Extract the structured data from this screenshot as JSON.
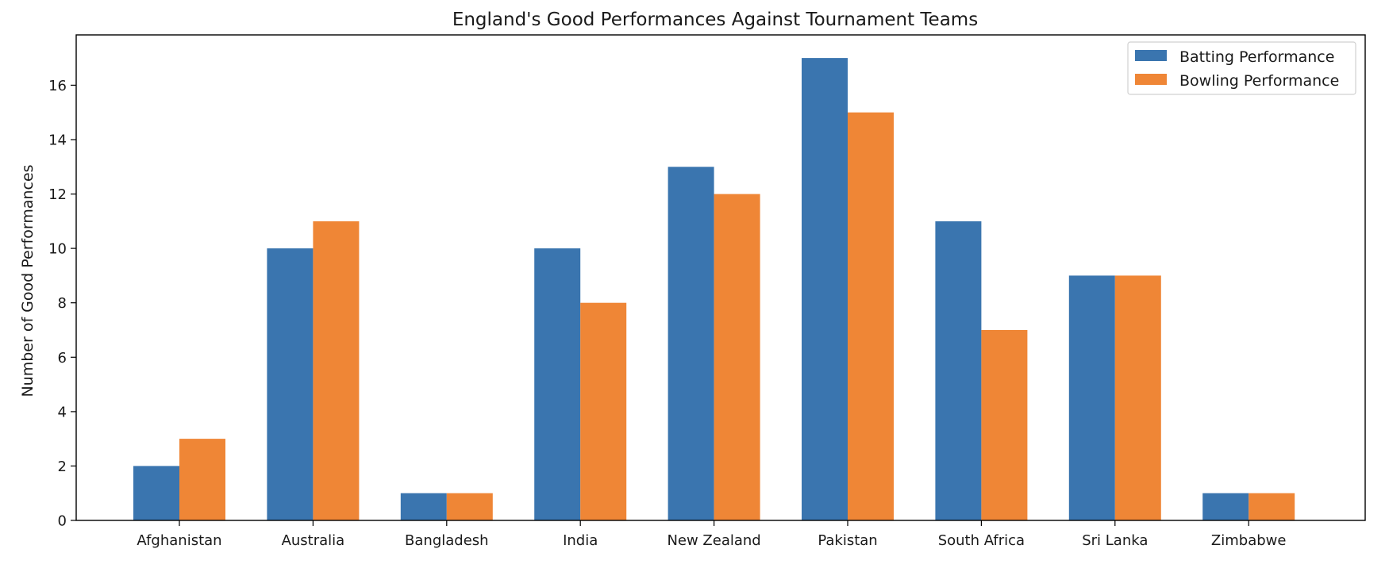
{
  "chart_data": {
    "type": "bar",
    "title": "England's Good Performances Against Tournament Teams",
    "xlabel": "",
    "ylabel": "Number of Good Performances",
    "categories": [
      "Afghanistan",
      "Australia",
      "Bangladesh",
      "India",
      "New Zealand",
      "Pakistan",
      "South Africa",
      "Sri Lanka",
      "Zimbabwe"
    ],
    "series": [
      {
        "name": "Batting Performance",
        "color": "#3a75af",
        "values": [
          2,
          10,
          1,
          10,
          13,
          17,
          11,
          9,
          1
        ]
      },
      {
        "name": "Bowling Performance",
        "color": "#ef8636",
        "values": [
          3,
          11,
          1,
          8,
          12,
          15,
          7,
          9,
          1
        ]
      }
    ],
    "ylim": [
      0,
      17.85
    ],
    "yticks": [
      0,
      2,
      4,
      6,
      8,
      10,
      12,
      14,
      16
    ],
    "grid": false,
    "legend_position": "top-right"
  }
}
